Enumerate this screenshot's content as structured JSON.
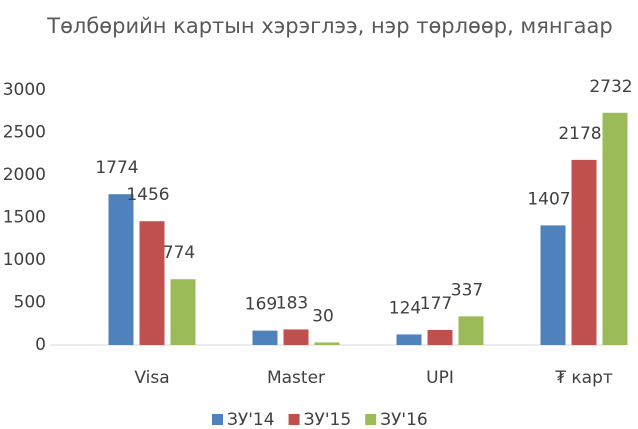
{
  "chart_data": {
    "type": "bar",
    "title": "Төлбөрийн картын хэрэглээ, нэр төрлөөр, мянгаар",
    "categories": [
      "Visa",
      "Master",
      "UPI",
      "₮ карт"
    ],
    "series": [
      {
        "name": "ЗУ'14",
        "color": "#4f81bd",
        "values": [
          1774,
          169,
          124,
          1407
        ]
      },
      {
        "name": "ЗУ'15",
        "color": "#c0504d",
        "values": [
          1456,
          183,
          177,
          2178
        ]
      },
      {
        "name": "ЗУ'16",
        "color": "#9bbb59",
        "values": [
          774,
          30,
          337,
          2732
        ]
      }
    ],
    "ylim": [
      0,
      3000
    ],
    "yticks": [
      0,
      500,
      1000,
      1500,
      2000,
      2500,
      3000
    ],
    "grid": false,
    "legend": "bottom"
  }
}
